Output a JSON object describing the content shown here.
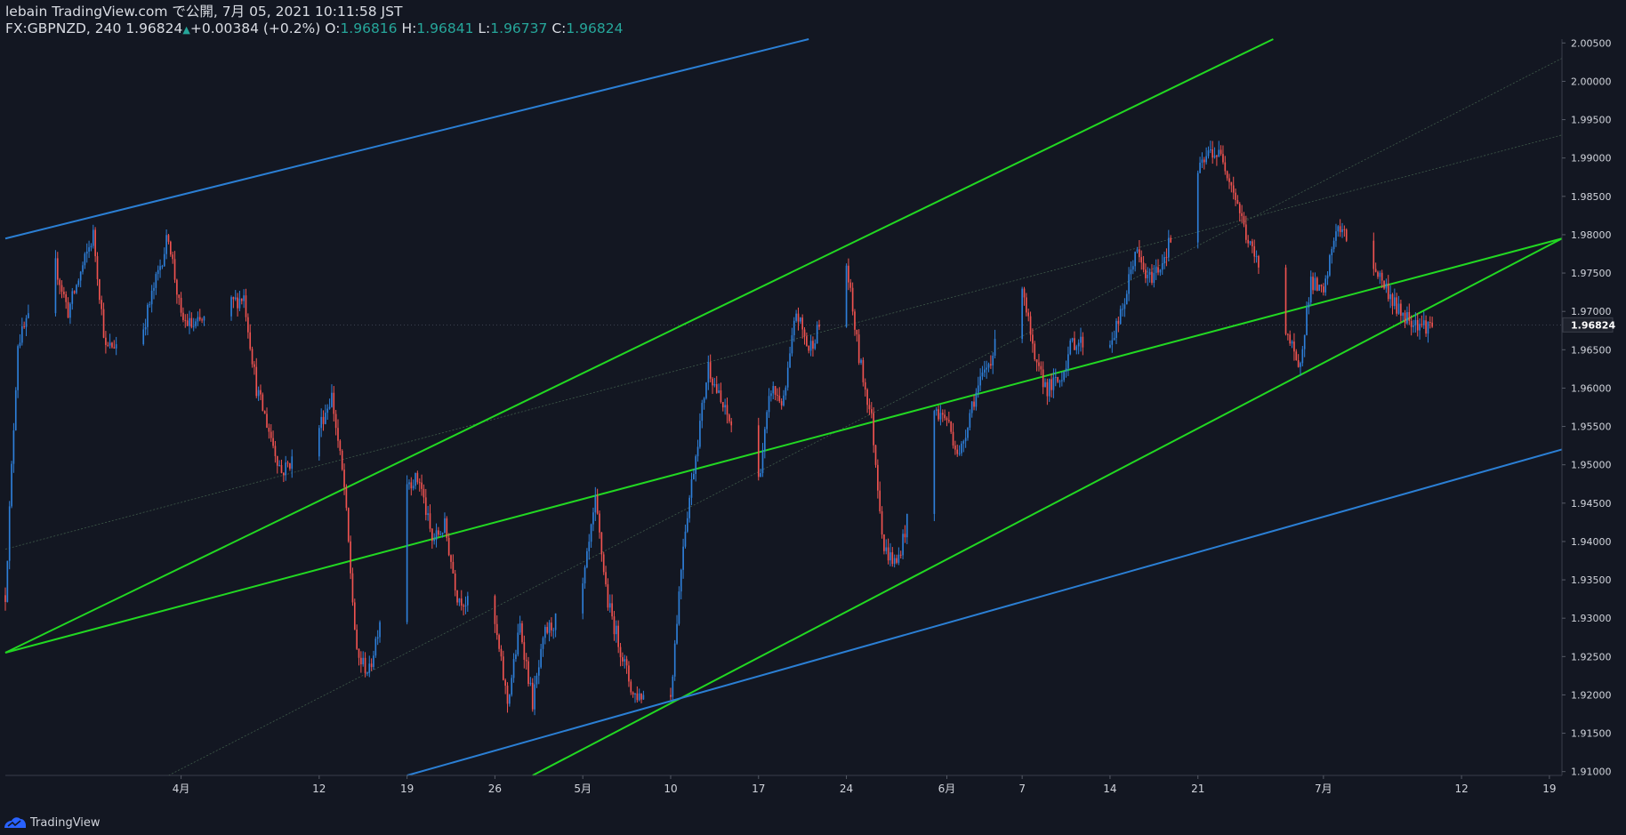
{
  "header": {
    "publish_line": "lebain TradingView.com で公開, 7月 05, 2021 10:11:58 JST",
    "symbol": "FX:GBPNZD, 240",
    "last": "1.96824",
    "change": "+0.00384 (+0.2%)",
    "o_label": "O:",
    "o_value": "1.96816",
    "h_label": "H:",
    "h_value": "1.96841",
    "l_label": "L:",
    "l_value": "1.96737",
    "c_label": "C:",
    "c_value": "1.96824"
  },
  "footer": {
    "brand": "TradingView"
  },
  "colors": {
    "background": "#131722",
    "up": "#2e7fd9",
    "down": "#ef5350",
    "trend_green": "#22d822",
    "trend_blue": "#2b7fd4",
    "axis_text": "#d1d4dc"
  },
  "chart_data": {
    "type": "candlestick",
    "symbol": "FX:GBPNZD",
    "interval": "240",
    "ylim": [
      1.9095,
      2.0055
    ],
    "x_range": [
      "2021-03-18",
      "2021-07-20"
    ],
    "y_ticks": [
      "2.00500",
      "2.00000",
      "1.99500",
      "1.99000",
      "1.98500",
      "1.98000",
      "1.97500",
      "1.97000",
      "1.96500",
      "1.96000",
      "1.95500",
      "1.95000",
      "1.94500",
      "1.94000",
      "1.93500",
      "1.93000",
      "1.92500",
      "1.92000",
      "1.91500",
      "1.91000"
    ],
    "x_ticks": [
      {
        "label": "4月",
        "date": "2021-04-01"
      },
      {
        "label": "12",
        "date": "2021-04-12"
      },
      {
        "label": "19",
        "date": "2021-04-19"
      },
      {
        "label": "26",
        "date": "2021-04-26"
      },
      {
        "label": "5月",
        "date": "2021-05-03"
      },
      {
        "label": "10",
        "date": "2021-05-10"
      },
      {
        "label": "17",
        "date": "2021-05-17"
      },
      {
        "label": "24",
        "date": "2021-05-24"
      },
      {
        "label": "6月",
        "date": "2021-06-01"
      },
      {
        "label": "7",
        "date": "2021-06-07"
      },
      {
        "label": "14",
        "date": "2021-06-14"
      },
      {
        "label": "21",
        "date": "2021-06-21"
      },
      {
        "label": "7月",
        "date": "2021-07-01"
      },
      {
        "label": "12",
        "date": "2021-07-12"
      },
      {
        "label": "19",
        "date": "2021-07-19"
      }
    ],
    "last_price_label": "1.96824",
    "price_path": [
      [
        "2021-03-18",
        1.933
      ],
      [
        "2021-03-19",
        1.966
      ],
      [
        "2021-03-22",
        1.976
      ],
      [
        "2021-03-23",
        1.97
      ],
      [
        "2021-03-25",
        1.98
      ],
      [
        "2021-03-26",
        1.965
      ],
      [
        "2021-03-29",
        1.968
      ],
      [
        "2021-03-31",
        1.98
      ],
      [
        "2021-04-01",
        1.969
      ],
      [
        "2021-04-02",
        1.968
      ],
      [
        "2021-04-06",
        1.972
      ],
      [
        "2021-04-07",
        1.96
      ],
      [
        "2021-04-09",
        1.949
      ],
      [
        "2021-04-12",
        1.955
      ],
      [
        "2021-04-13",
        1.959
      ],
      [
        "2021-04-14",
        1.947
      ],
      [
        "2021-04-15",
        1.925
      ],
      [
        "2021-04-16",
        1.923
      ],
      [
        "2021-04-19",
        1.948
      ],
      [
        "2021-04-20",
        1.948
      ],
      [
        "2021-04-21",
        1.94
      ],
      [
        "2021-04-22",
        1.942
      ],
      [
        "2021-04-23",
        1.933
      ],
      [
        "2021-04-26",
        1.929
      ],
      [
        "2021-04-27",
        1.919
      ],
      [
        "2021-04-28",
        1.929
      ],
      [
        "2021-04-29",
        1.919
      ],
      [
        "2021-04-30",
        1.928
      ],
      [
        "2021-05-03",
        1.934
      ],
      [
        "2021-05-04",
        1.945
      ],
      [
        "2021-05-05",
        1.932
      ],
      [
        "2021-05-06",
        1.926
      ],
      [
        "2021-05-07",
        1.92
      ],
      [
        "2021-05-10",
        1.92
      ],
      [
        "2021-05-11",
        1.94
      ],
      [
        "2021-05-13",
        1.963
      ],
      [
        "2021-05-14",
        1.958
      ],
      [
        "2021-05-17",
        1.948
      ],
      [
        "2021-05-18",
        1.96
      ],
      [
        "2021-05-19",
        1.958
      ],
      [
        "2021-05-20",
        1.97
      ],
      [
        "2021-05-21",
        1.965
      ],
      [
        "2021-05-24",
        1.976
      ],
      [
        "2021-05-25",
        1.964
      ],
      [
        "2021-05-26",
        1.956
      ],
      [
        "2021-05-27",
        1.939
      ],
      [
        "2021-05-28",
        1.937
      ],
      [
        "2021-05-31",
        1.957
      ],
      [
        "2021-06-01",
        1.956
      ],
      [
        "2021-06-02",
        1.951
      ],
      [
        "2021-06-03",
        1.958
      ],
      [
        "2021-06-04",
        1.962
      ],
      [
        "2021-06-07",
        1.974
      ],
      [
        "2021-06-08",
        1.963
      ],
      [
        "2021-06-09",
        1.96
      ],
      [
        "2021-06-10",
        1.961
      ],
      [
        "2021-06-11",
        1.966
      ],
      [
        "2021-06-14",
        1.966
      ],
      [
        "2021-06-15",
        1.97
      ],
      [
        "2021-06-16",
        1.978
      ],
      [
        "2021-06-17",
        1.974
      ],
      [
        "2021-06-18",
        1.976
      ],
      [
        "2021-06-21",
        1.988
      ],
      [
        "2021-06-22",
        1.991
      ],
      [
        "2021-06-23",
        1.99
      ],
      [
        "2021-06-24",
        1.985
      ],
      [
        "2021-06-25",
        1.979
      ],
      [
        "2021-06-28",
        1.968
      ],
      [
        "2021-06-29",
        1.962
      ],
      [
        "2021-06-30",
        1.974
      ],
      [
        "2021-07-01",
        1.972
      ],
      [
        "2021-07-02",
        1.981
      ],
      [
        "2021-07-05",
        1.976
      ],
      [
        "2021-07-06",
        1.973
      ],
      [
        "2021-07-07",
        1.97
      ],
      [
        "2021-07-08",
        1.969
      ],
      [
        "2021-07-09",
        1.9682
      ]
    ],
    "trendlines": [
      {
        "color": "green",
        "from": [
          "2021-03-18",
          1.9255
        ],
        "to": [
          "2021-07-20",
          1.9795
        ]
      },
      {
        "color": "green",
        "from": [
          "2021-04-29",
          1.9095
        ],
        "to": [
          "2021-07-20",
          1.9795
        ]
      },
      {
        "color": "green",
        "from": [
          "2021-03-18",
          1.9255
        ],
        "to": [
          "2021-06-27",
          2.0055
        ]
      },
      {
        "color": "blue",
        "from": [
          "2021-03-18",
          1.9795
        ],
        "to": [
          "2021-05-21",
          2.0055
        ]
      },
      {
        "color": "blue",
        "from": [
          "2021-04-19",
          1.9095
        ],
        "to": [
          "2021-07-20",
          1.952
        ]
      }
    ]
  }
}
